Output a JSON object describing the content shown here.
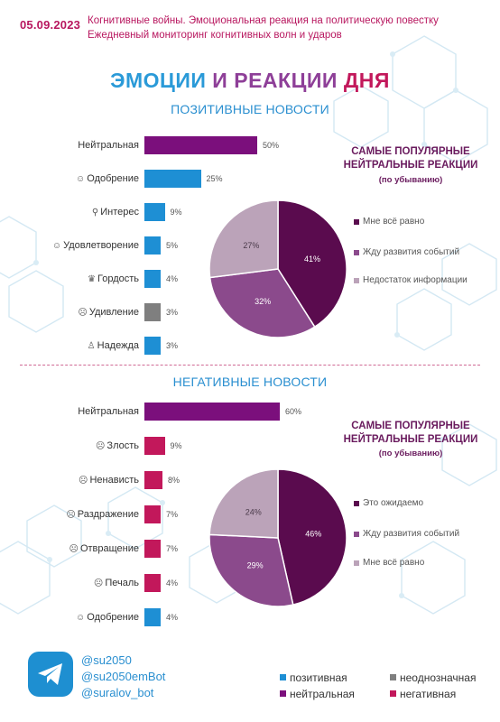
{
  "header": {
    "date": "05.09.2023",
    "line1": "Когнитивные войны. Эмоциональная реакция на политическую повестку",
    "line2": "Ежедневный мониторинг когнитивных волн и ударов"
  },
  "title": {
    "part1": "ЭМОЦИИ",
    "part2": " И РЕАКЦИИ",
    "part3": " ДНЯ"
  },
  "colors": {
    "positive": "#1e8fd4",
    "ambiguous": "#7f7f7f",
    "neutral": "#7b0f7c",
    "negative": "#c2185b",
    "pie1": "#5a0b4e",
    "pie2": "#8b4a8c",
    "pie3": "#bba3b9"
  },
  "chart_data": [
    {
      "type": "bar",
      "title": "ПОЗИТИВНЫЕ НОВОСТИ",
      "categories": [
        "Нейтральная",
        "Одобрение",
        "Интерес",
        "Удовлетворение",
        "Гордость",
        "Удивление",
        "Надежда"
      ],
      "icons": [
        "",
        "approval-icon",
        "interest-icon",
        "satisfaction-icon",
        "pride-icon",
        "surprise-icon",
        "hope-icon"
      ],
      "values": [
        50,
        25,
        9,
        5,
        4,
        3,
        3
      ],
      "value_labels": [
        "50%",
        "25%",
        "9%",
        "5%",
        "4%",
        "3%",
        "3%"
      ],
      "bar_colors": [
        "neutral",
        "positive",
        "positive",
        "positive",
        "positive",
        "ambiguous",
        "positive"
      ],
      "unit": "%"
    },
    {
      "type": "pie",
      "title": "САМЫЕ ПОПУЛЯРНЫЕ НЕЙТРАЛЬНЫЕ РЕАКЦИИ",
      "subtitle": "(по убыванию)",
      "labels": [
        "Мне всё равно",
        "Жду развития событий",
        "Недостаток информации"
      ],
      "values": [
        41,
        32,
        27
      ],
      "value_labels": [
        "41%",
        "32%",
        "27%"
      ]
    },
    {
      "type": "bar",
      "title": "НЕГАТИВНЫЕ НОВОСТИ",
      "categories": [
        "Нейтральная",
        "Злость",
        "Ненависть",
        "Раздражение",
        "Отвращение",
        "Печаль",
        "Одобрение"
      ],
      "icons": [
        "",
        "anger-icon",
        "hate-icon",
        "irritation-icon",
        "disgust-icon",
        "sadness-icon",
        "approval-icon"
      ],
      "values": [
        60,
        9,
        8,
        7,
        7,
        4,
        4
      ],
      "value_labels": [
        "60%",
        "9%",
        "8%",
        "7%",
        "7%",
        "4%",
        "4%"
      ],
      "bar_colors": [
        "neutral",
        "negative",
        "negative",
        "negative",
        "negative",
        "negative",
        "positive"
      ],
      "unit": "%"
    },
    {
      "type": "pie",
      "title": "САМЫЕ ПОПУЛЯРНЫЕ НЕЙТРАЛЬНЫЕ РЕАКЦИИ",
      "subtitle": "(по убыванию)",
      "labels": [
        "Это ожидаемо",
        "Жду развития событий",
        "Мне всё равно"
      ],
      "values": [
        46,
        29,
        24
      ],
      "value_labels": [
        "46%",
        "29%",
        "24%"
      ]
    }
  ],
  "footer": {
    "handles": [
      "@su2050",
      "@su2050emBot",
      "@suralov_bot"
    ],
    "key": [
      {
        "label": "позитивная",
        "color": "positive"
      },
      {
        "label": "неоднозначная",
        "color": "ambiguous"
      },
      {
        "label": "нейтральная",
        "color": "neutral"
      },
      {
        "label": "негативная",
        "color": "negative"
      }
    ]
  }
}
